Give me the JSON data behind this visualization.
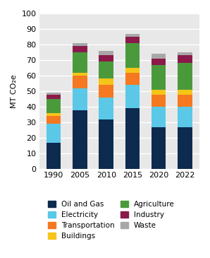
{
  "years": [
    "1990",
    "2005",
    "2010",
    "2015",
    "2020",
    "2022"
  ],
  "sectors": [
    "Oil and Gas",
    "Electricity",
    "Transportation",
    "Buildings",
    "Agriculture",
    "Industry",
    "Waste"
  ],
  "colors": {
    "Oil and Gas": "#0d2b4e",
    "Electricity": "#5bc8e8",
    "Transportation": "#f47920",
    "Buildings": "#f5c518",
    "Agriculture": "#4a9a3c",
    "Industry": "#8b1a4a",
    "Waste": "#a8a8a8"
  },
  "data": {
    "Oil and Gas": [
      17,
      38,
      32,
      39,
      27,
      27
    ],
    "Electricity": [
      12,
      14,
      14,
      15,
      13,
      13
    ],
    "Transportation": [
      5,
      8,
      8,
      8,
      8,
      8
    ],
    "Buildings": [
      2,
      2,
      4,
      3,
      3,
      3
    ],
    "Agriculture": [
      9,
      13,
      11,
      16,
      16,
      17
    ],
    "Industry": [
      3,
      4,
      4,
      4,
      4,
      5
    ],
    "Waste": [
      1,
      2,
      3,
      2,
      3,
      2
    ]
  },
  "ylabel": "MT CO₂e",
  "ylim": [
    0,
    100
  ],
  "yticks": [
    0,
    10,
    20,
    30,
    40,
    50,
    60,
    70,
    80,
    90,
    100
  ],
  "plot_bg_color": "#e8e8e8",
  "grid_color": "#ffffff",
  "legend_order_col1": [
    "Oil and Gas",
    "Transportation",
    "Agriculture",
    "Waste"
  ],
  "legend_order_col2": [
    "Electricity",
    "Buildings",
    "Industry"
  ]
}
